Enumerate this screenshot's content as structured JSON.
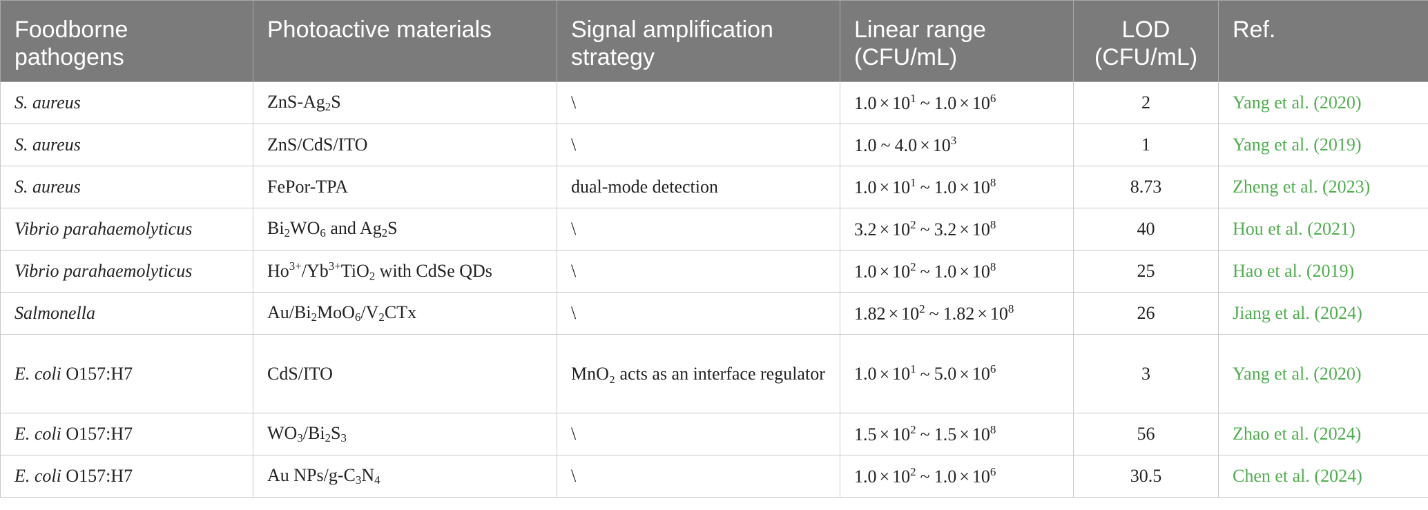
{
  "headers": {
    "pathogen": "Foodborne pathogens",
    "materials": "Photoactive materials",
    "strategy": "Signal amplification strategy",
    "range": "Linear range (CFU/mL)",
    "lod": "LOD (CFU/mL)",
    "ref": "Ref."
  },
  "rows": [
    {
      "pathogen": {
        "species": "S. aureus",
        "strain": ""
      },
      "materials": [
        {
          "t": "ZnS-Ag"
        },
        {
          "t": "2",
          "sub": true
        },
        {
          "t": "S"
        }
      ],
      "strategy": "\\",
      "range": {
        "lo_m": "1.0",
        "lo_e": "1",
        "hi_m": "1.0",
        "hi_e": "6"
      },
      "lod": "2",
      "ref": "Yang et al. (2020)"
    },
    {
      "pathogen": {
        "species": "S. aureus",
        "strain": ""
      },
      "materials": [
        {
          "t": "ZnS/CdS/ITO"
        }
      ],
      "strategy": "\\",
      "range": {
        "lo_m": "1.0",
        "lo_e": "",
        "hi_m": "4.0",
        "hi_e": "3"
      },
      "lod": "1",
      "ref": "Yang et al. (2019)"
    },
    {
      "pathogen": {
        "species": "S. aureus",
        "strain": ""
      },
      "materials": [
        {
          "t": "FePor-TPA"
        }
      ],
      "strategy": "dual-mode detection",
      "range": {
        "lo_m": "1.0",
        "lo_e": "1",
        "hi_m": "1.0",
        "hi_e": "8"
      },
      "lod": "8.73",
      "ref": "Zheng et al. (2023)"
    },
    {
      "pathogen": {
        "species": "Vibrio parahaemolyticus",
        "strain": ""
      },
      "materials": [
        {
          "t": "Bi"
        },
        {
          "t": "2",
          "sub": true
        },
        {
          "t": "WO"
        },
        {
          "t": "6",
          "sub": true
        },
        {
          "t": " and Ag"
        },
        {
          "t": "2",
          "sub": true
        },
        {
          "t": "S"
        }
      ],
      "strategy": "\\",
      "range": {
        "lo_m": "3.2",
        "lo_e": "2",
        "hi_m": "3.2",
        "hi_e": "8"
      },
      "lod": "40",
      "ref": "Hou et al. (2021)"
    },
    {
      "pathogen": {
        "species": "Vibrio parahaemolyticus",
        "strain": ""
      },
      "materials": [
        {
          "t": "Ho"
        },
        {
          "t": "3+",
          "sup": true
        },
        {
          "t": "/Yb"
        },
        {
          "t": "3+",
          "sup": true
        },
        {
          "t": "TiO"
        },
        {
          "t": "2",
          "sub": true
        },
        {
          "t": " with CdSe QDs"
        }
      ],
      "strategy": "\\",
      "range": {
        "lo_m": "1.0",
        "lo_e": "2",
        "hi_m": "1.0",
        "hi_e": "8"
      },
      "lod": "25",
      "ref": "Hao et al. (2019)"
    },
    {
      "pathogen": {
        "species": "Salmonella",
        "strain": ""
      },
      "materials": [
        {
          "t": "Au/Bi"
        },
        {
          "t": "2",
          "sub": true
        },
        {
          "t": "MoO"
        },
        {
          "t": "6",
          "sub": true
        },
        {
          "t": "/V"
        },
        {
          "t": "2",
          "sub": true
        },
        {
          "t": "CTx"
        }
      ],
      "strategy": "\\",
      "range": {
        "lo_m": "1.82",
        "lo_e": "2",
        "hi_m": "1.82",
        "hi_e": "8"
      },
      "lod": "26",
      "ref": "Jiang et al. (2024)"
    },
    {
      "pathogen": {
        "species": "E. coli",
        "strain": "O157:H7"
      },
      "materials": [
        {
          "t": "CdS/ITO"
        }
      ],
      "strategy": "MnO₂ acts as an interface regulator",
      "range": {
        "lo_m": "1.0",
        "lo_e": "1",
        "hi_m": "5.0",
        "hi_e": "6"
      },
      "lod": "3",
      "ref": "Yang et al. (2020)",
      "tall": true
    },
    {
      "pathogen": {
        "species": "E. coli",
        "strain": "O157:H7"
      },
      "materials": [
        {
          "t": "WO"
        },
        {
          "t": "3",
          "sub": true
        },
        {
          "t": "/Bi"
        },
        {
          "t": "2",
          "sub": true
        },
        {
          "t": "S"
        },
        {
          "t": "3",
          "sub": true
        }
      ],
      "strategy": "\\",
      "range": {
        "lo_m": "1.5",
        "lo_e": "2",
        "hi_m": "1.5",
        "hi_e": "8"
      },
      "lod": "56",
      "ref": "Zhao et al. (2024)"
    },
    {
      "pathogen": {
        "species": "E. coli",
        "strain": "O157:H7"
      },
      "materials": [
        {
          "t": "Au NPs/g-C"
        },
        {
          "t": "3",
          "sub": true
        },
        {
          "t": "N"
        },
        {
          "t": "4",
          "sub": true
        }
      ],
      "strategy": "\\",
      "range": {
        "lo_m": "1.0",
        "lo_e": "2",
        "hi_m": "1.0",
        "hi_e": "6"
      },
      "lod": "30.5",
      "ref": "Chen et al. (2024)"
    }
  ]
}
